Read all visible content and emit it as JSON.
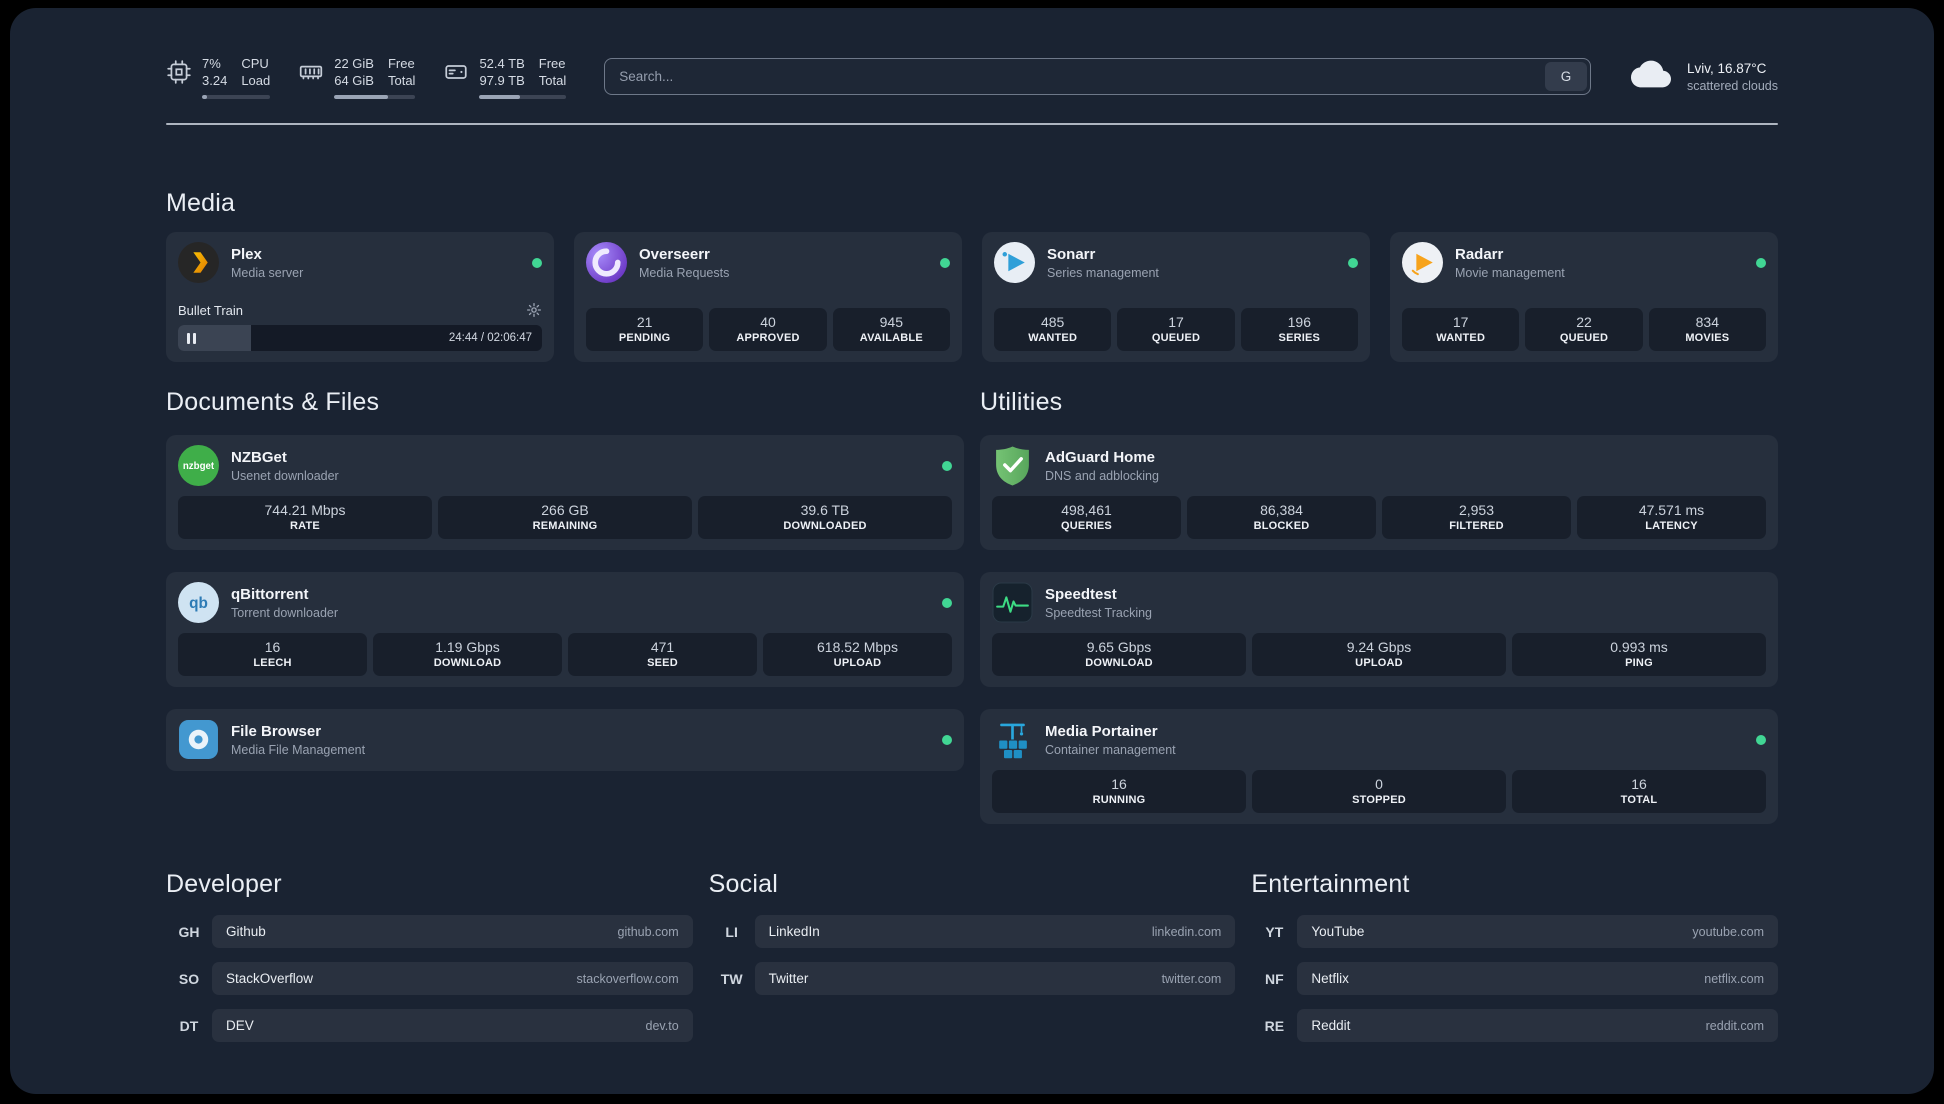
{
  "colors": {
    "status-online": "#41d694",
    "bar-track": "#3c4454",
    "bar-fill": "#9aa4b5"
  },
  "topbar": {
    "resources": [
      {
        "icon": "cpu-icon",
        "value1": "7%",
        "value2": "3.24",
        "label1": "CPU",
        "label2": "Load",
        "percent": 7
      },
      {
        "icon": "memory-icon",
        "value1": "22 GiB",
        "value2": "64 GiB",
        "label1": "Free",
        "label2": "Total",
        "percent": 66
      },
      {
        "icon": "disk-icon",
        "value1": "52.4 TB",
        "value2": "97.9 TB",
        "label1": "Free",
        "label2": "Total",
        "percent": 47
      }
    ],
    "search": {
      "placeholder": "Search...",
      "provider_button": "G"
    },
    "weather": {
      "location": "Lviv, 16.87°C",
      "condition": "scattered clouds"
    }
  },
  "sections": {
    "media": {
      "title": "Media",
      "cards": [
        {
          "name": "Plex",
          "desc": "Media server",
          "status": "online",
          "player": {
            "track": "Bullet Train",
            "time": "24:44 / 02:06:47",
            "percent": 20
          }
        },
        {
          "name": "Overseerr",
          "desc": "Media Requests",
          "status": "online",
          "stats": [
            {
              "value": "21",
              "label": "PENDING"
            },
            {
              "value": "40",
              "label": "APPROVED"
            },
            {
              "value": "945",
              "label": "AVAILABLE"
            }
          ]
        },
        {
          "name": "Sonarr",
          "desc": "Series management",
          "status": "online",
          "stats": [
            {
              "value": "485",
              "label": "WANTED"
            },
            {
              "value": "17",
              "label": "QUEUED"
            },
            {
              "value": "196",
              "label": "SERIES"
            }
          ]
        },
        {
          "name": "Radarr",
          "desc": "Movie management",
          "status": "online",
          "stats": [
            {
              "value": "17",
              "label": "WANTED"
            },
            {
              "value": "22",
              "label": "QUEUED"
            },
            {
              "value": "834",
              "label": "MOVIES"
            }
          ]
        }
      ]
    },
    "documents": {
      "title": "Documents & Files",
      "cards": [
        {
          "name": "NZBGet",
          "desc": "Usenet downloader",
          "status": "online",
          "stats": [
            {
              "value": "744.21 Mbps",
              "label": "RATE"
            },
            {
              "value": "266 GB",
              "label": "REMAINING"
            },
            {
              "value": "39.6 TB",
              "label": "DOWNLOADED"
            }
          ]
        },
        {
          "name": "qBittorrent",
          "desc": "Torrent downloader",
          "status": "online",
          "stats": [
            {
              "value": "16",
              "label": "LEECH"
            },
            {
              "value": "1.19 Gbps",
              "label": "DOWNLOAD"
            },
            {
              "value": "471",
              "label": "SEED"
            },
            {
              "value": "618.52 Mbps",
              "label": "UPLOAD"
            }
          ]
        },
        {
          "name": "File Browser",
          "desc": "Media File Management",
          "status": "online"
        }
      ]
    },
    "utilities": {
      "title": "Utilities",
      "cards": [
        {
          "name": "AdGuard Home",
          "desc": "DNS and adblocking",
          "stats": [
            {
              "value": "498,461",
              "label": "QUERIES"
            },
            {
              "value": "86,384",
              "label": "BLOCKED"
            },
            {
              "value": "2,953",
              "label": "FILTERED"
            },
            {
              "value": "47.571 ms",
              "label": "LATENCY"
            }
          ]
        },
        {
          "name": "Speedtest",
          "desc": "Speedtest Tracking",
          "stats": [
            {
              "value": "9.65 Gbps",
              "label": "DOWNLOAD"
            },
            {
              "value": "9.24 Gbps",
              "label": "UPLOAD"
            },
            {
              "value": "0.993 ms",
              "label": "PING"
            }
          ]
        },
        {
          "name": "Media Portainer",
          "desc": "Container management",
          "status": "online",
          "stats": [
            {
              "value": "16",
              "label": "RUNNING"
            },
            {
              "value": "0",
              "label": "STOPPED"
            },
            {
              "value": "16",
              "label": "TOTAL"
            }
          ]
        }
      ]
    }
  },
  "bookmarks": [
    {
      "title": "Developer",
      "items": [
        {
          "abbr": "GH",
          "name": "Github",
          "domain": "github.com"
        },
        {
          "abbr": "SO",
          "name": "StackOverflow",
          "domain": "stackoverflow.com"
        },
        {
          "abbr": "DT",
          "name": "DEV",
          "domain": "dev.to"
        }
      ]
    },
    {
      "title": "Social",
      "items": [
        {
          "abbr": "LI",
          "name": "LinkedIn",
          "domain": "linkedin.com"
        },
        {
          "abbr": "TW",
          "name": "Twitter",
          "domain": "twitter.com"
        }
      ]
    },
    {
      "title": "Entertainment",
      "items": [
        {
          "abbr": "YT",
          "name": "YouTube",
          "domain": "youtube.com"
        },
        {
          "abbr": "NF",
          "name": "Netflix",
          "domain": "netflix.com"
        },
        {
          "abbr": "RE",
          "name": "Reddit",
          "domain": "reddit.com"
        }
      ]
    }
  ]
}
